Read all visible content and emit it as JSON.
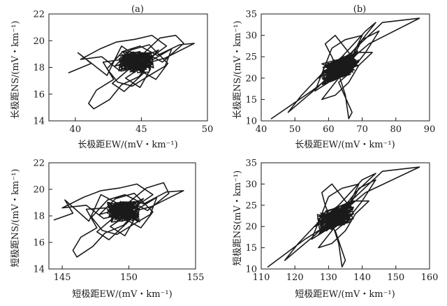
{
  "chart_data": [
    {
      "id": "top-left",
      "type": "line",
      "panel_label": "(a)",
      "xlabel": "长极距EW/(mV・km⁻¹)",
      "ylabel": "长极距NS/(mV・km⁻¹)",
      "xlim": [
        38,
        50
      ],
      "ylim": [
        14,
        22
      ],
      "xticks": [
        40,
        45,
        50
      ],
      "yticks": [
        14,
        16,
        18,
        20,
        22
      ],
      "center": [
        44.6,
        18.4
      ],
      "series": [
        {
          "name": "trajectory",
          "points": [
            [
              39.5,
              17.6
            ],
            [
              41.2,
              18.3
            ],
            [
              40.2,
              19.1
            ],
            [
              42.4,
              17.4
            ],
            [
              43.5,
              19.6
            ],
            [
              44.8,
              18.7
            ],
            [
              46.4,
              20.2
            ],
            [
              47.6,
              20.4
            ],
            [
              48.2,
              19.8
            ],
            [
              46.6,
              18.4
            ],
            [
              45.3,
              19.1
            ],
            [
              44.4,
              17.6
            ],
            [
              43.6,
              18.6
            ],
            [
              42.1,
              18.4
            ],
            [
              42.9,
              17.1
            ],
            [
              41.6,
              16.3
            ],
            [
              41.0,
              15.3
            ],
            [
              41.4,
              14.9
            ],
            [
              42.6,
              15.6
            ],
            [
              43.5,
              16.7
            ],
            [
              44.8,
              17.3
            ],
            [
              45.9,
              18.6
            ],
            [
              47.3,
              19.4
            ],
            [
              46.8,
              18.1
            ],
            [
              45.6,
              17.4
            ],
            [
              44.3,
              16.6
            ],
            [
              43.2,
              16.9
            ],
            [
              42.4,
              17.9
            ],
            [
              43.6,
              19.2
            ],
            [
              44.9,
              19.6
            ],
            [
              46.2,
              18.9
            ],
            [
              47.9,
              19.7
            ],
            [
              49.0,
              19.8
            ],
            [
              46.8,
              18.7
            ],
            [
              44.6,
              18.1
            ],
            [
              43.3,
              17.8
            ],
            [
              42.0,
              18.8
            ],
            [
              40.4,
              18.6
            ],
            [
              41.9,
              19.4
            ],
            [
              43.1,
              19.9
            ],
            [
              44.5,
              20.1
            ],
            [
              45.8,
              20.4
            ],
            [
              46.9,
              19.6
            ],
            [
              45.4,
              18.5
            ],
            [
              44.1,
              17.9
            ],
            [
              42.8,
              16.8
            ],
            [
              43.7,
              16.2
            ],
            [
              45.2,
              17.6
            ],
            [
              46.1,
              17.1
            ],
            [
              47.0,
              18.3
            ],
            [
              45.6,
              19.7
            ],
            [
              44.2,
              19.3
            ],
            [
              43.0,
              18.1
            ],
            [
              44.7,
              18.6
            ],
            [
              46.3,
              19.3
            ],
            [
              45.0,
              18.0
            ],
            [
              43.8,
              17.2
            ],
            [
              44.9,
              16.5
            ],
            [
              45.7,
              17.9
            ],
            [
              44.6,
              18.4
            ]
          ]
        }
      ]
    },
    {
      "id": "top-right",
      "type": "line",
      "panel_label": "(b)",
      "xlabel": "长极距EW/(mV・km⁻¹)",
      "ylabel": "长极距NS/(mV・km⁻¹)",
      "xlim": [
        40,
        90
      ],
      "ylim": [
        10,
        35
      ],
      "xticks": [
        40,
        50,
        60,
        70,
        80,
        90
      ],
      "yticks": [
        10,
        15,
        20,
        25,
        30,
        35
      ],
      "center": [
        63.5,
        22.5
      ],
      "series": [
        {
          "name": "trajectory",
          "points": [
            [
              43,
              10.5
            ],
            [
              55,
              17
            ],
            [
              60,
              20
            ],
            [
              66,
              24
            ],
            [
              72,
              28
            ],
            [
              87,
              34
            ],
            [
              76,
              33
            ],
            [
              68,
              27
            ],
            [
              62,
              22
            ],
            [
              57,
              18
            ],
            [
              48,
              12
            ],
            [
              52,
              16
            ],
            [
              58,
              21
            ],
            [
              64,
              25
            ],
            [
              71,
              31
            ],
            [
              74,
              33
            ],
            [
              69,
              28
            ],
            [
              63,
              22
            ],
            [
              60,
              19
            ],
            [
              56,
              17
            ],
            [
              59,
              23
            ],
            [
              61,
              27
            ],
            [
              65,
              29
            ],
            [
              70,
              30
            ],
            [
              67,
              25
            ],
            [
              64,
              21
            ],
            [
              61,
              18
            ],
            [
              58,
              15
            ],
            [
              62,
              16
            ],
            [
              66,
              19
            ],
            [
              69,
              23
            ],
            [
              73,
              26
            ],
            [
              68,
              26
            ],
            [
              64,
              24
            ],
            [
              60,
              22
            ],
            [
              57,
              20
            ],
            [
              62,
              22
            ],
            [
              66,
              23
            ],
            [
              70,
              29
            ],
            [
              75,
              31
            ],
            [
              71,
              26
            ],
            [
              66,
              21
            ],
            [
              63,
              19
            ],
            [
              67,
              12
            ],
            [
              66,
              10.5
            ],
            [
              65,
              16
            ],
            [
              63,
              21
            ],
            [
              61,
              25
            ],
            [
              59,
              28
            ],
            [
              62,
              30
            ],
            [
              65,
              27
            ],
            [
              68,
              24
            ],
            [
              64,
              22
            ],
            [
              60,
              21
            ],
            [
              63,
              23
            ]
          ]
        }
      ]
    },
    {
      "id": "bottom-left",
      "type": "line",
      "panel_label": "",
      "xlabel": "短极距EW/(mV・km⁻¹)",
      "ylabel": "短极距NS/(mV・km⁻¹)",
      "xlim": [
        144,
        155
      ],
      "ylim": [
        14,
        22
      ],
      "xticks": [
        145,
        150,
        155
      ],
      "yticks": [
        14,
        16,
        18,
        20,
        22
      ],
      "center": [
        149.6,
        18.3
      ],
      "series": [
        {
          "name": "trajectory",
          "points": [
            [
              144.4,
              17.7
            ],
            [
              145.8,
              18.2
            ],
            [
              145.2,
              19.2
            ],
            [
              147.0,
              17.6
            ],
            [
              147.9,
              19.6
            ],
            [
              149.6,
              18.7
            ],
            [
              151.3,
              20.1
            ],
            [
              152.6,
              20.5
            ],
            [
              153.0,
              19.7
            ],
            [
              151.4,
              18.4
            ],
            [
              150.1,
              19.1
            ],
            [
              149.2,
              17.6
            ],
            [
              148.3,
              18.6
            ],
            [
              146.8,
              18.5
            ],
            [
              147.6,
              17.1
            ],
            [
              146.4,
              16.4
            ],
            [
              145.8,
              15.4
            ],
            [
              146.1,
              14.9
            ],
            [
              147.3,
              15.7
            ],
            [
              148.2,
              16.7
            ],
            [
              149.6,
              17.3
            ],
            [
              150.8,
              18.6
            ],
            [
              152.1,
              19.4
            ],
            [
              151.6,
              18.1
            ],
            [
              150.4,
              17.4
            ],
            [
              149.1,
              16.6
            ],
            [
              148.0,
              16.9
            ],
            [
              147.2,
              17.9
            ],
            [
              148.4,
              19.2
            ],
            [
              149.7,
              19.6
            ],
            [
              151.1,
              18.9
            ],
            [
              152.8,
              19.8
            ],
            [
              154.1,
              19.9
            ],
            [
              151.7,
              18.7
            ],
            [
              149.4,
              18.1
            ],
            [
              148.1,
              17.8
            ],
            [
              146.8,
              18.8
            ],
            [
              145.0,
              18.6
            ],
            [
              146.6,
              19.4
            ],
            [
              147.9,
              19.9
            ],
            [
              149.3,
              20.1
            ],
            [
              150.6,
              20.4
            ],
            [
              151.8,
              19.6
            ],
            [
              150.2,
              18.5
            ],
            [
              148.9,
              17.9
            ],
            [
              147.6,
              16.8
            ],
            [
              148.5,
              16.2
            ],
            [
              150.0,
              17.6
            ],
            [
              150.9,
              17.1
            ],
            [
              151.8,
              18.3
            ],
            [
              150.4,
              19.7
            ],
            [
              149.0,
              19.3
            ],
            [
              147.8,
              18.1
            ],
            [
              149.5,
              18.6
            ],
            [
              151.1,
              19.3
            ],
            [
              149.8,
              18.0
            ],
            [
              148.6,
              17.2
            ],
            [
              149.7,
              16.5
            ],
            [
              150.5,
              17.9
            ],
            [
              149.6,
              18.3
            ]
          ]
        }
      ]
    },
    {
      "id": "bottom-right",
      "type": "line",
      "panel_label": "",
      "xlabel": "短极距EW/(mV・km⁻¹)",
      "ylabel": "短极距NS(mV・km⁻¹)",
      "xlim": [
        110,
        160
      ],
      "ylim": [
        10,
        35
      ],
      "xticks": [
        110,
        120,
        130,
        140,
        150,
        160
      ],
      "yticks": [
        10,
        15,
        20,
        25,
        30,
        35
      ],
      "center": [
        132,
        22
      ],
      "series": [
        {
          "name": "trajectory",
          "points": [
            [
              112,
              10.5
            ],
            [
              123,
              17
            ],
            [
              129,
              20
            ],
            [
              135,
              24
            ],
            [
              141,
              28
            ],
            [
              157,
              34
            ],
            [
              146,
              33
            ],
            [
              138,
              27
            ],
            [
              131,
              22
            ],
            [
              126,
              18
            ],
            [
              117,
              12
            ],
            [
              121,
              16
            ],
            [
              127,
              21
            ],
            [
              133,
              25
            ],
            [
              140,
              31
            ],
            [
              144,
              32.5
            ],
            [
              138,
              28
            ],
            [
              132,
              22
            ],
            [
              129,
              19
            ],
            [
              125,
              17
            ],
            [
              128,
              23
            ],
            [
              130,
              27
            ],
            [
              134,
              29
            ],
            [
              139,
              30
            ],
            [
              136,
              25
            ],
            [
              133,
              21
            ],
            [
              130,
              18
            ],
            [
              127,
              15
            ],
            [
              131,
              16
            ],
            [
              135,
              19
            ],
            [
              138,
              23
            ],
            [
              142,
              26
            ],
            [
              137,
              26
            ],
            [
              133,
              24
            ],
            [
              129,
              22
            ],
            [
              126,
              20
            ],
            [
              131,
              22
            ],
            [
              135,
              23
            ],
            [
              139,
              29
            ],
            [
              144,
              31
            ],
            [
              140,
              26
            ],
            [
              135,
              21
            ],
            [
              132,
              19
            ],
            [
              135,
              12
            ],
            [
              134,
              10.5
            ],
            [
              133,
              16
            ],
            [
              131,
              21
            ],
            [
              129,
              25
            ],
            [
              128,
              28
            ],
            [
              131,
              30
            ],
            [
              134,
              27
            ],
            [
              137,
              24
            ],
            [
              133,
              22
            ],
            [
              129,
              21
            ],
            [
              132,
              23
            ]
          ]
        }
      ]
    }
  ]
}
